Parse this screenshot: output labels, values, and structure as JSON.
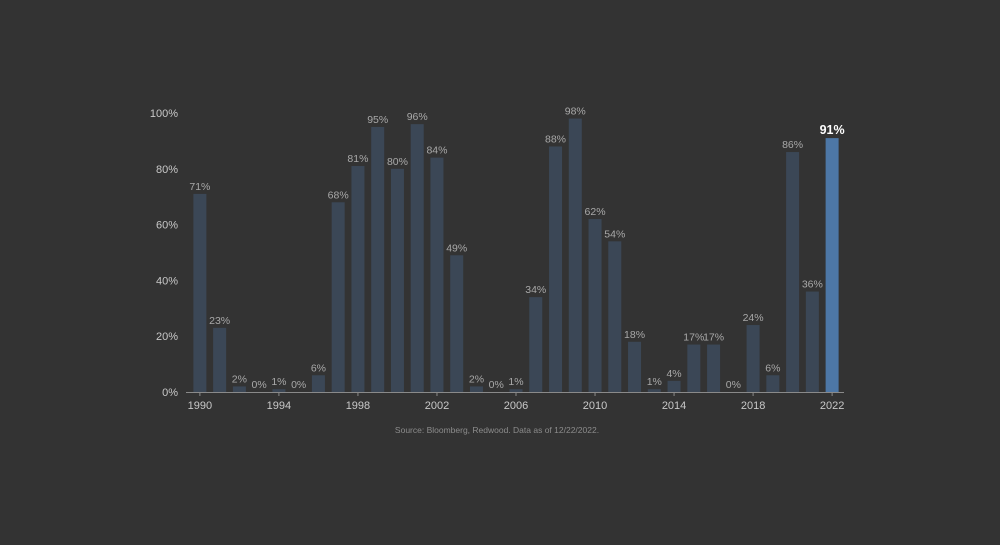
{
  "chart_data": {
    "type": "bar",
    "title": "",
    "xlabel": "",
    "ylabel": "",
    "ylim": [
      0,
      100
    ],
    "yticks": [
      "0%",
      "20%",
      "40%",
      "60%",
      "80%",
      "100%"
    ],
    "yticks_values": [
      0,
      20,
      40,
      60,
      80,
      100
    ],
    "xtick_labels": [
      "1990",
      "1994",
      "1998",
      "2002",
      "2006",
      "2010",
      "2014",
      "2018",
      "2022"
    ],
    "categories": [
      "1990",
      "1991",
      "1992",
      "1993",
      "1994",
      "1995",
      "1996",
      "1997",
      "1998",
      "1999",
      "2000",
      "2001",
      "2002",
      "2003",
      "2004",
      "2005",
      "2006",
      "2007",
      "2008",
      "2009",
      "2010",
      "2011",
      "2012",
      "2013",
      "2014",
      "2015",
      "2016",
      "2017",
      "2018",
      "2019",
      "2020",
      "2021",
      "2022"
    ],
    "values": [
      71,
      23,
      2,
      0,
      1,
      0,
      6,
      68,
      81,
      95,
      80,
      96,
      84,
      49,
      2,
      0,
      1,
      34,
      88,
      98,
      62,
      54,
      18,
      1,
      4,
      17,
      17,
      0,
      24,
      6,
      86,
      36,
      91
    ],
    "data_labels": [
      "71%",
      "23%",
      "2%",
      "0%",
      "1%",
      "0%",
      "6%",
      "68%",
      "81%",
      "95%",
      "80%",
      "96%",
      "84%",
      "49%",
      "2%",
      "0%",
      "1%",
      "34%",
      "88%",
      "98%",
      "62%",
      "54%",
      "18%",
      "1%",
      "4%",
      "17%",
      "17%",
      "0%",
      "24%",
      "6%",
      "86%",
      "36%",
      "91%"
    ],
    "highlight_category": "2022",
    "grid": false,
    "legend": "none",
    "colors": {
      "bar": "#3b4756",
      "highlight": "#4d77a6",
      "background": "#333333",
      "axis": "#8a8a8a"
    },
    "source_note": "Source: Bloomberg, Redwood. Data as of 12/22/2022."
  }
}
